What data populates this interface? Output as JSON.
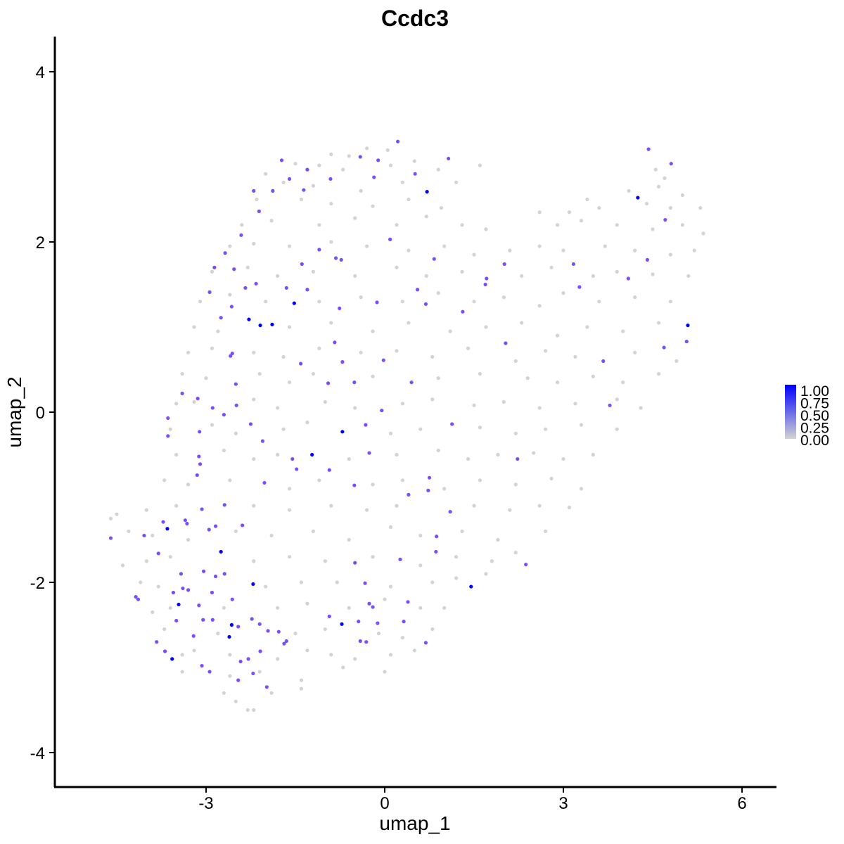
{
  "chart_data": {
    "type": "scatter",
    "title": "Ccdc3",
    "xlabel": "umap_1",
    "ylabel": "umap_2",
    "xlim": [
      -5.4,
      6.6
    ],
    "ylim": [
      -4.3,
      4.4
    ],
    "xticks": [
      -3,
      0,
      3,
      6
    ],
    "yticks": [
      -4,
      -2,
      0,
      2,
      4
    ],
    "xtick_labels": [
      "-3",
      "0",
      "3",
      "6"
    ],
    "ytick_labels": [
      "-4",
      "-2",
      "0",
      "2",
      "4"
    ],
    "grid": false,
    "legend": {
      "placement": "right",
      "labels": [
        "1.00",
        "0.75",
        "0.50",
        "0.25",
        "0.00"
      ],
      "low_color": "#d3d3d3",
      "high_color": "#0000ff",
      "range": [
        0,
        1
      ]
    },
    "points_high": [
      [
        0.71,
        2.59
      ],
      [
        4.25,
        2.52
      ],
      [
        5.09,
        1.02
      ],
      [
        -1.52,
        1.28
      ],
      [
        -2.28,
        1.09
      ],
      [
        -2.09,
        1.02
      ],
      [
        -1.89,
        1.03
      ],
      [
        -0.71,
        -0.23
      ],
      [
        -1.22,
        -0.5
      ],
      [
        -3.65,
        -1.37
      ],
      [
        -2.75,
        -1.64
      ],
      [
        -2.21,
        -2.02
      ],
      [
        -3.46,
        -2.26
      ],
      [
        -2.57,
        -2.5
      ],
      [
        -2.61,
        -2.64
      ],
      [
        -3.57,
        -2.9
      ],
      [
        -0.72,
        -2.49
      ],
      [
        1.45,
        -2.05
      ]
    ],
    "points_mid": [
      [
        0.22,
        3.18
      ],
      [
        1.07,
        2.98
      ],
      [
        -0.11,
        2.96
      ],
      [
        -1.3,
        2.85
      ],
      [
        -1.6,
        2.74
      ],
      [
        -2.2,
        2.6
      ],
      [
        -1.88,
        2.6
      ],
      [
        -1.36,
        2.61
      ],
      [
        -2.11,
        2.36
      ],
      [
        -2.41,
        2.08
      ],
      [
        -2.68,
        1.87
      ],
      [
        -2.86,
        1.7
      ],
      [
        -2.53,
        1.68
      ],
      [
        -1.1,
        1.91
      ],
      [
        -0.82,
        1.81
      ],
      [
        -0.73,
        1.79
      ],
      [
        -1.39,
        1.74
      ],
      [
        0.09,
        2.03
      ],
      [
        0.83,
        1.8
      ],
      [
        1.71,
        1.57
      ],
      [
        1.69,
        1.5
      ],
      [
        -2.34,
        1.46
      ],
      [
        -2.16,
        1.51
      ],
      [
        -2.94,
        1.41
      ],
      [
        -1.65,
        1.46
      ],
      [
        -1.3,
        1.44
      ],
      [
        -0.13,
        1.29
      ],
      [
        0.69,
        1.27
      ],
      [
        1.31,
        1.18
      ],
      [
        -2.75,
        1.11
      ],
      [
        -2.57,
        1.24
      ],
      [
        -0.84,
        0.82
      ],
      [
        -2.59,
        0.66
      ],
      [
        -2.56,
        0.69
      ],
      [
        -1.41,
        0.57
      ],
      [
        -0.02,
        0.61
      ],
      [
        -0.71,
        0.59
      ],
      [
        -0.95,
        0.34
      ],
      [
        -0.51,
        0.35
      ],
      [
        0.45,
        0.35
      ],
      [
        -2.5,
        0.33
      ],
      [
        -3.4,
        0.22
      ],
      [
        -3.14,
        0.16
      ],
      [
        -2.89,
        0.05
      ],
      [
        -2.7,
        -0.03
      ],
      [
        -2.49,
        0.08
      ],
      [
        -2.25,
        -0.14
      ],
      [
        -3.64,
        -0.28
      ],
      [
        -3.11,
        -0.23
      ],
      [
        -3.12,
        -0.52
      ],
      [
        -2.05,
        -0.34
      ],
      [
        -0.32,
        -0.15
      ],
      [
        -0.05,
        0.02
      ],
      [
        -0.26,
        -0.48
      ],
      [
        1.13,
        -0.14
      ],
      [
        -0.93,
        -0.68
      ],
      [
        -1.55,
        -0.55
      ],
      [
        -1.48,
        -0.67
      ],
      [
        -2.02,
        -0.83
      ],
      [
        -0.51,
        -0.86
      ],
      [
        0.75,
        -0.77
      ],
      [
        0.73,
        -0.92
      ],
      [
        0.4,
        -0.97
      ],
      [
        2.23,
        -0.55
      ],
      [
        3.78,
        0.08
      ],
      [
        3.67,
        0.6
      ],
      [
        2.03,
        0.81
      ],
      [
        4.69,
        0.76
      ],
      [
        5.07,
        0.83
      ],
      [
        4.09,
        1.57
      ],
      [
        4.41,
        1.79
      ],
      [
        3.27,
        1.47
      ],
      [
        3.17,
        1.74
      ],
      [
        4.71,
        2.26
      ],
      [
        4.81,
        2.92
      ],
      [
        4.43,
        3.09
      ],
      [
        2.01,
        1.74
      ],
      [
        0.55,
        1.44
      ],
      [
        -0.76,
        1.22
      ],
      [
        -1.73,
        2.96
      ],
      [
        -0.41,
        3.0
      ],
      [
        0.51,
        2.8
      ],
      [
        -0.18,
        2.76
      ],
      [
        -0.91,
        2.74
      ],
      [
        -3.8,
        -1.66
      ],
      [
        -4.04,
        -1.45
      ],
      [
        -3.72,
        -1.29
      ],
      [
        -3.32,
        -1.31
      ],
      [
        -3.35,
        -1.27
      ],
      [
        -3.07,
        -1.14
      ],
      [
        -2.69,
        -1.09
      ],
      [
        -3.15,
        -0.74
      ],
      [
        -2.84,
        -1.34
      ],
      [
        -2.39,
        -1.33
      ],
      [
        -3.04,
        -1.87
      ],
      [
        -3.42,
        -1.9
      ],
      [
        -3.3,
        -2.09
      ],
      [
        -3.55,
        -2.12
      ],
      [
        -2.9,
        -2.12
      ],
      [
        -3.12,
        -2.27
      ],
      [
        -3.05,
        -2.44
      ],
      [
        -2.89,
        -2.44
      ],
      [
        -3.21,
        -2.63
      ],
      [
        -3.07,
        -2.98
      ],
      [
        -2.94,
        -3.05
      ],
      [
        -4.14,
        -2.2
      ],
      [
        -4.18,
        -2.17
      ],
      [
        -4.6,
        -1.48
      ],
      [
        -3.83,
        -2.7
      ],
      [
        -2.84,
        -1.93
      ],
      [
        -2.56,
        -2.2
      ],
      [
        -2.23,
        -2.43
      ],
      [
        -2.09,
        -2.81
      ],
      [
        -1.96,
        -2.57
      ],
      [
        -1.78,
        -2.58
      ],
      [
        -2.1,
        -2.49
      ],
      [
        -2.42,
        -2.93
      ],
      [
        -2.21,
        -3.07
      ],
      [
        -1.98,
        -3.23
      ],
      [
        -2.46,
        -3.15
      ],
      [
        -1.69,
        -2.72
      ],
      [
        -0.93,
        -2.4
      ],
      [
        -0.44,
        -2.46
      ],
      [
        -0.12,
        -2.48
      ],
      [
        0.32,
        -2.46
      ],
      [
        0.39,
        -2.23
      ],
      [
        -0.2,
        -2.29
      ],
      [
        -0.26,
        -2.25
      ],
      [
        -0.33,
        -2.01
      ],
      [
        -0.5,
        -1.77
      ],
      [
        0.26,
        -1.73
      ],
      [
        2.37,
        -1.79
      ],
      [
        1.1,
        -1.17
      ],
      [
        0.87,
        -1.46
      ],
      [
        0.86,
        -1.64
      ],
      [
        -0.41,
        -2.69
      ],
      [
        -0.31,
        -2.7
      ],
      [
        0.69,
        -2.71
      ],
      [
        -3.39,
        -2.07
      ],
      [
        -3.5,
        -2.45
      ],
      [
        -3.69,
        -2.81
      ],
      [
        -2.95,
        -1.38
      ],
      [
        -2.69,
        -1.9
      ],
      [
        -2.46,
        -2.52
      ],
      [
        -2.29,
        -2.9
      ],
      [
        -1.65,
        -2.69
      ],
      [
        -3.64,
        -0.07
      ],
      [
        -3.1,
        -0.61
      ]
    ],
    "points_zero": [
      [
        -0.9,
        3.03
      ],
      [
        -0.6,
        3.01
      ],
      [
        -0.3,
        3.1
      ],
      [
        0.05,
        3.08
      ],
      [
        -1.5,
        2.92
      ],
      [
        -1.1,
        2.9
      ],
      [
        -0.7,
        2.85
      ],
      [
        0.1,
        2.9
      ],
      [
        0.5,
        2.95
      ],
      [
        0.9,
        2.85
      ],
      [
        1.6,
        2.9
      ],
      [
        4.55,
        2.85
      ],
      [
        4.7,
        2.75
      ],
      [
        -2.0,
        2.8
      ],
      [
        -1.7,
        2.7
      ],
      [
        -1.2,
        2.66
      ],
      [
        -0.4,
        2.6
      ],
      [
        0.3,
        2.7
      ],
      [
        1.2,
        2.7
      ],
      [
        4.1,
        2.6
      ],
      [
        4.6,
        2.65
      ],
      [
        5.0,
        2.55
      ],
      [
        3.4,
        2.5
      ],
      [
        -2.15,
        2.5
      ],
      [
        -1.4,
        2.5
      ],
      [
        -0.9,
        2.45
      ],
      [
        -0.2,
        2.42
      ],
      [
        0.4,
        2.5
      ],
      [
        0.95,
        2.4
      ],
      [
        3.6,
        2.4
      ],
      [
        4.4,
        2.45
      ],
      [
        4.8,
        2.4
      ],
      [
        5.3,
        2.4
      ],
      [
        2.6,
        2.35
      ],
      [
        3.1,
        2.35
      ],
      [
        -2.4,
        2.2
      ],
      [
        -1.9,
        2.25
      ],
      [
        -1.1,
        2.2
      ],
      [
        -0.5,
        2.28
      ],
      [
        0.2,
        2.2
      ],
      [
        0.7,
        2.3
      ],
      [
        1.3,
        2.2
      ],
      [
        1.7,
        2.15
      ],
      [
        2.9,
        2.2
      ],
      [
        3.3,
        2.25
      ],
      [
        3.9,
        2.2
      ],
      [
        4.5,
        2.15
      ],
      [
        5.0,
        2.2
      ],
      [
        5.35,
        2.1
      ],
      [
        -2.6,
        1.95
      ],
      [
        -2.2,
        1.98
      ],
      [
        -1.6,
        1.95
      ],
      [
        -0.9,
        2.0
      ],
      [
        -0.3,
        1.95
      ],
      [
        0.4,
        1.9
      ],
      [
        1.0,
        1.95
      ],
      [
        1.5,
        1.85
      ],
      [
        2.1,
        1.9
      ],
      [
        2.6,
        1.95
      ],
      [
        3.0,
        1.9
      ],
      [
        3.7,
        1.95
      ],
      [
        4.2,
        1.9
      ],
      [
        4.8,
        1.85
      ],
      [
        5.2,
        1.9
      ],
      [
        -2.9,
        1.65
      ],
      [
        -2.3,
        1.7
      ],
      [
        -1.8,
        1.6
      ],
      [
        -1.2,
        1.65
      ],
      [
        -0.5,
        1.6
      ],
      [
        0.2,
        1.7
      ],
      [
        0.7,
        1.6
      ],
      [
        1.3,
        1.65
      ],
      [
        2.3,
        1.6
      ],
      [
        2.8,
        1.7
      ],
      [
        3.5,
        1.6
      ],
      [
        3.9,
        1.65
      ],
      [
        4.5,
        1.62
      ],
      [
        5.1,
        1.6
      ],
      [
        -3.1,
        1.3
      ],
      [
        -2.6,
        1.38
      ],
      [
        -2.0,
        1.3
      ],
      [
        -1.1,
        1.3
      ],
      [
        -0.4,
        1.35
      ],
      [
        0.3,
        1.3
      ],
      [
        0.9,
        1.4
      ],
      [
        1.5,
        1.3
      ],
      [
        2.0,
        1.35
      ],
      [
        2.6,
        1.25
      ],
      [
        3.0,
        1.4
      ],
      [
        3.6,
        1.3
      ],
      [
        4.2,
        1.35
      ],
      [
        4.8,
        1.3
      ],
      [
        -3.2,
        1.0
      ],
      [
        -2.8,
        0.95
      ],
      [
        -1.6,
        1.0
      ],
      [
        -0.9,
        1.05
      ],
      [
        -0.2,
        0.95
      ],
      [
        0.4,
        1.05
      ],
      [
        1.1,
        0.95
      ],
      [
        1.7,
        1.0
      ],
      [
        2.3,
        1.05
      ],
      [
        2.9,
        0.9
      ],
      [
        3.4,
        1.0
      ],
      [
        4.0,
        0.95
      ],
      [
        4.6,
        1.05
      ],
      [
        -3.3,
        0.7
      ],
      [
        -2.9,
        0.75
      ],
      [
        -2.2,
        0.7
      ],
      [
        -1.7,
        0.65
      ],
      [
        -1.1,
        0.75
      ],
      [
        -0.4,
        0.7
      ],
      [
        0.2,
        0.72
      ],
      [
        0.8,
        0.65
      ],
      [
        1.4,
        0.75
      ],
      [
        2.2,
        0.6
      ],
      [
        2.7,
        0.72
      ],
      [
        3.2,
        0.65
      ],
      [
        4.2,
        0.7
      ],
      [
        4.9,
        0.6
      ],
      [
        -3.4,
        0.45
      ],
      [
        -3.0,
        0.4
      ],
      [
        -2.1,
        0.45
      ],
      [
        -1.6,
        0.35
      ],
      [
        -1.2,
        0.45
      ],
      [
        -0.2,
        0.42
      ],
      [
        0.9,
        0.4
      ],
      [
        1.6,
        0.45
      ],
      [
        2.4,
        0.4
      ],
      [
        2.9,
        0.35
      ],
      [
        3.5,
        0.42
      ],
      [
        4.0,
        0.35
      ],
      [
        4.6,
        0.45
      ],
      [
        -3.5,
        0.1
      ],
      [
        -3.2,
        0.12
      ],
      [
        -2.2,
        0.15
      ],
      [
        -1.8,
        0.05
      ],
      [
        -1.0,
        0.12
      ],
      [
        -0.5,
        0.05
      ],
      [
        0.3,
        0.1
      ],
      [
        0.8,
        0.15
      ],
      [
        1.5,
        0.08
      ],
      [
        2.0,
        0.12
      ],
      [
        2.6,
        0.05
      ],
      [
        3.2,
        0.1
      ],
      [
        3.9,
        0.15
      ],
      [
        4.3,
        0.05
      ],
      [
        -3.6,
        -0.2
      ],
      [
        -2.9,
        -0.15
      ],
      [
        -2.5,
        -0.25
      ],
      [
        -1.7,
        -0.2
      ],
      [
        -1.3,
        -0.12
      ],
      [
        0.1,
        -0.25
      ],
      [
        0.6,
        -0.2
      ],
      [
        1.6,
        -0.18
      ],
      [
        2.2,
        -0.25
      ],
      [
        2.7,
        -0.2
      ],
      [
        3.3,
        -0.15
      ],
      [
        3.9,
        -0.2
      ],
      [
        -3.5,
        -0.5
      ],
      [
        -2.7,
        -0.45
      ],
      [
        -2.2,
        -0.55
      ],
      [
        -1.8,
        -0.5
      ],
      [
        -0.6,
        -0.55
      ],
      [
        0.2,
        -0.5
      ],
      [
        0.9,
        -0.45
      ],
      [
        1.4,
        -0.55
      ],
      [
        1.9,
        -0.5
      ],
      [
        2.5,
        -0.48
      ],
      [
        3.0,
        -0.55
      ],
      [
        3.5,
        -0.5
      ],
      [
        -3.7,
        -0.8
      ],
      [
        -3.3,
        -0.85
      ],
      [
        -2.6,
        -0.8
      ],
      [
        -1.6,
        -0.9
      ],
      [
        -1.1,
        -0.8
      ],
      [
        -0.2,
        -0.85
      ],
      [
        0.3,
        -0.8
      ],
      [
        1.0,
        -0.9
      ],
      [
        1.6,
        -0.8
      ],
      [
        2.2,
        -0.85
      ],
      [
        2.8,
        -0.78
      ],
      [
        3.3,
        -0.9
      ],
      [
        -4.0,
        -1.15
      ],
      [
        -3.5,
        -1.1
      ],
      [
        -2.2,
        -1.1
      ],
      [
        -1.6,
        -1.15
      ],
      [
        -0.9,
        -1.1
      ],
      [
        -0.3,
        -1.15
      ],
      [
        0.2,
        -1.1
      ],
      [
        1.5,
        -1.1
      ],
      [
        2.1,
        -1.15
      ],
      [
        2.6,
        -1.1
      ],
      [
        3.1,
        -1.12
      ],
      [
        -4.6,
        -1.25
      ],
      [
        -4.5,
        -1.2
      ],
      [
        -4.3,
        -1.4
      ],
      [
        -3.9,
        -1.45
      ],
      [
        -3.3,
        -1.5
      ],
      [
        -2.5,
        -1.4
      ],
      [
        -1.9,
        -1.45
      ],
      [
        -1.2,
        -1.4
      ],
      [
        -0.6,
        -1.5
      ],
      [
        0.1,
        -1.35
      ],
      [
        0.6,
        -1.45
      ],
      [
        1.3,
        -1.4
      ],
      [
        1.9,
        -1.5
      ],
      [
        2.7,
        -1.4
      ],
      [
        -4.4,
        -1.8
      ],
      [
        -4.0,
        -1.75
      ],
      [
        -3.6,
        -1.7
      ],
      [
        -2.2,
        -1.75
      ],
      [
        -1.6,
        -1.7
      ],
      [
        -1.0,
        -1.75
      ],
      [
        -0.2,
        -1.7
      ],
      [
        0.6,
        -1.8
      ],
      [
        1.2,
        -1.7
      ],
      [
        1.8,
        -1.75
      ],
      [
        2.2,
        -1.65
      ],
      [
        -4.1,
        -2.0
      ],
      [
        -3.8,
        -2.05
      ],
      [
        -2.0,
        -2.05
      ],
      [
        -1.4,
        -2.0
      ],
      [
        -0.8,
        -2.0
      ],
      [
        0.1,
        -2.05
      ],
      [
        0.8,
        -2.0
      ],
      [
        1.2,
        -1.95
      ],
      [
        1.7,
        -1.9
      ],
      [
        -3.9,
        -2.35
      ],
      [
        -3.6,
        -2.3
      ],
      [
        -2.7,
        -2.3
      ],
      [
        -1.8,
        -2.3
      ],
      [
        -1.3,
        -2.25
      ],
      [
        -0.6,
        -2.3
      ],
      [
        0.0,
        -2.2
      ],
      [
        0.6,
        -2.3
      ],
      [
        1.0,
        -2.3
      ],
      [
        -3.7,
        -2.55
      ],
      [
        -2.8,
        -2.6
      ],
      [
        -1.5,
        -2.6
      ],
      [
        -1.0,
        -2.55
      ],
      [
        -0.1,
        -2.6
      ],
      [
        0.3,
        -2.65
      ],
      [
        0.8,
        -2.55
      ],
      [
        -3.4,
        -2.85
      ],
      [
        -3.2,
        -2.8
      ],
      [
        -2.6,
        -2.85
      ],
      [
        -1.8,
        -2.9
      ],
      [
        -1.3,
        -2.8
      ],
      [
        -0.9,
        -2.85
      ],
      [
        -0.5,
        -2.9
      ],
      [
        0.1,
        -2.85
      ],
      [
        0.5,
        -2.8
      ],
      [
        -3.4,
        -3.05
      ],
      [
        -2.6,
        -3.1
      ],
      [
        -2.1,
        -3.05
      ],
      [
        -1.4,
        -3.15
      ],
      [
        -0.7,
        -3.0
      ],
      [
        0.0,
        -3.05
      ],
      [
        -2.7,
        -3.3
      ],
      [
        -2.5,
        -3.4
      ],
      [
        -2.3,
        -3.5
      ],
      [
        -2.2,
        -3.5
      ],
      [
        -1.9,
        -3.3
      ],
      [
        -1.4,
        -3.25
      ]
    ]
  }
}
